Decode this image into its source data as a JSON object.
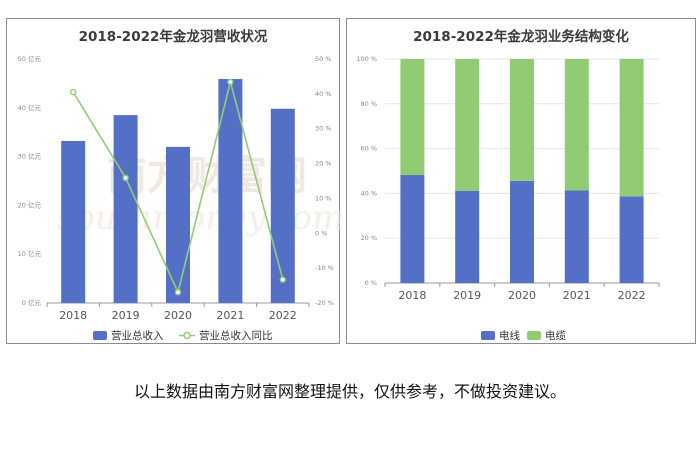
{
  "left_chart": {
    "title": "2018-2022年金龙羽营收状况",
    "y_left_ticks": [
      "0 亿元",
      "10 亿元",
      "20 亿元",
      "30 亿元",
      "40 亿元",
      "50 亿元"
    ],
    "y_right_ticks": [
      "-20 %",
      "-10 %",
      "0 %",
      "10 %",
      "20 %",
      "30 %",
      "40 %",
      "50 %"
    ],
    "legend": [
      "营业总收入",
      "营业总收入同比"
    ]
  },
  "right_chart": {
    "title": "2018-2022年金龙羽业务结构变化",
    "y_ticks": [
      "0 %",
      "20 %",
      "40 %",
      "60 %",
      "80 %",
      "100 %"
    ],
    "legend": [
      "电线",
      "电缆"
    ]
  },
  "watermark": {
    "cn": "南方财富网",
    "en": "southmoney.com"
  },
  "disclaimer": "以上数据由南方财富网整理提供，仅供参考，不做投资建议。",
  "colors": {
    "bar": "#5470c6",
    "line": "#91cc75",
    "wire": "#5470c6",
    "cable": "#91cc75"
  },
  "chart_data": [
    {
      "type": "bar",
      "title": "2018-2022年金龙羽营收状况",
      "categories": [
        "2018",
        "2019",
        "2020",
        "2021",
        "2022"
      ],
      "series": [
        {
          "name": "营业总收入",
          "type": "bar",
          "axis": "left",
          "values": [
            33.2,
            38.5,
            32.0,
            45.9,
            39.8
          ]
        },
        {
          "name": "营业总收入同比",
          "type": "line",
          "axis": "right",
          "values": [
            40.5,
            15.9,
            -16.9,
            43.4,
            -13.3
          ]
        }
      ],
      "ylim_left": [
        0,
        50
      ],
      "ylim_right": [
        -20,
        50
      ],
      "legend_position": "bottom"
    },
    {
      "type": "bar",
      "stacked": true,
      "title": "2018-2022年金龙羽业务结构变化",
      "categories": [
        "2018",
        "2019",
        "2020",
        "2021",
        "2022"
      ],
      "series": [
        {
          "name": "电线",
          "values": [
            48.2,
            41.2,
            45.6,
            41.3,
            38.7
          ]
        },
        {
          "name": "电缆",
          "values": [
            51.8,
            58.8,
            54.4,
            58.7,
            61.3
          ]
        }
      ],
      "ylim": [
        0,
        100
      ],
      "legend_position": "bottom"
    }
  ]
}
